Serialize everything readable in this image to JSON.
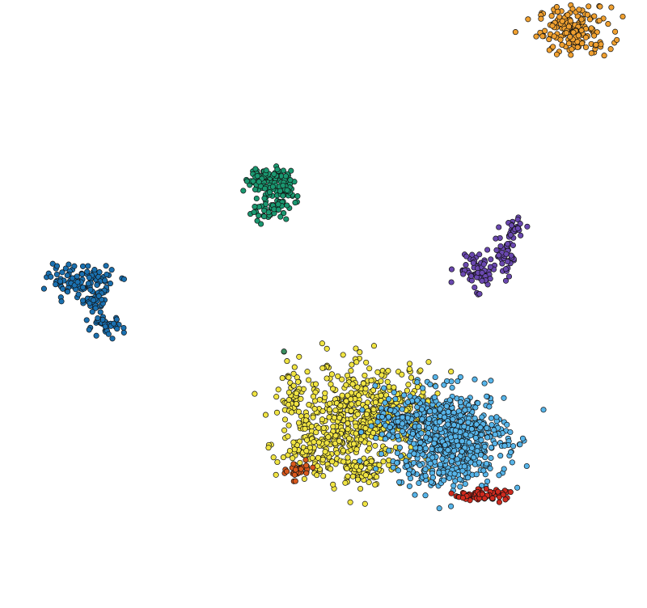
{
  "chart_data": {
    "type": "scatter",
    "title": "",
    "xlabel": "",
    "ylabel": "",
    "axes_visible": false,
    "grid": false,
    "legend": "none",
    "xlim": [
      0,
      100
    ],
    "ylim": [
      0,
      100
    ],
    "series": [
      {
        "cluster": "orange-top-right",
        "color": "#F0A030",
        "blobs": [
          {
            "cx": 88.8,
            "cy": 95.0,
            "sx": 3.3,
            "sy": 2.3,
            "n": 170
          }
        ]
      },
      {
        "cluster": "green-upper-middle",
        "color": "#1A9870",
        "blobs": [
          {
            "cx": 41.5,
            "cy": 70.6,
            "sx": 2.0,
            "sy": 1.3,
            "n": 90
          },
          {
            "cx": 42.0,
            "cy": 66.4,
            "sx": 1.9,
            "sy": 1.6,
            "n": 70
          },
          {
            "cx": 44.0,
            "cy": 68.6,
            "sx": 0.9,
            "sy": 0.9,
            "n": 20
          }
        ]
      },
      {
        "cluster": "purple-right",
        "color": "#6A48B0",
        "blobs": [
          {
            "cx": 73.8,
            "cy": 55.6,
            "sx": 1.9,
            "sy": 1.8,
            "n": 70
          },
          {
            "cx": 77.5,
            "cy": 58.6,
            "sx": 1.2,
            "sy": 1.6,
            "n": 25
          },
          {
            "cx": 79.3,
            "cy": 62.4,
            "sx": 1.0,
            "sy": 1.2,
            "n": 25
          },
          {
            "cx": 79.0,
            "cy": 57.2,
            "sx": 0.7,
            "sy": 1.4,
            "n": 15
          }
        ]
      },
      {
        "cluster": "dark-blue-left",
        "color": "#1A70B0",
        "blobs": [
          {
            "cx": 12.5,
            "cy": 54.0,
            "sx": 3.0,
            "sy": 1.4,
            "n": 90
          },
          {
            "cx": 14.5,
            "cy": 50.6,
            "sx": 1.3,
            "sy": 1.5,
            "n": 40
          },
          {
            "cx": 16.3,
            "cy": 46.3,
            "sx": 1.6,
            "sy": 1.0,
            "n": 40
          }
        ]
      },
      {
        "cluster": "yellow-lower-middle",
        "color": "#F0E442",
        "blobs": [
          {
            "cx": 56.0,
            "cy": 31.5,
            "sx": 6.5,
            "sy": 5.0,
            "n": 560
          },
          {
            "cx": 48.0,
            "cy": 25.6,
            "sx": 3.0,
            "sy": 2.2,
            "n": 90
          },
          {
            "cx": 45.3,
            "cy": 34.3,
            "sx": 0.9,
            "sy": 2.5,
            "n": 40
          },
          {
            "cx": 56.0,
            "cy": 22.5,
            "sx": 2.5,
            "sy": 1.5,
            "n": 60
          }
        ]
      },
      {
        "cluster": "light-blue-lower-right",
        "color": "#56B4E9",
        "blobs": [
          {
            "cx": 69.4,
            "cy": 27.9,
            "sx": 5.2,
            "sy": 4.6,
            "n": 700
          },
          {
            "cx": 62.0,
            "cy": 30.6,
            "sx": 2.0,
            "sy": 2.2,
            "n": 80
          }
        ]
      },
      {
        "cluster": "red-bottom-right",
        "color": "#D02A1E",
        "blobs": [
          {
            "cx": 74.3,
            "cy": 18.6,
            "sx": 2.3,
            "sy": 0.5,
            "n": 70
          }
        ]
      },
      {
        "cluster": "orange-red-small",
        "color": "#D9581C",
        "blobs": [
          {
            "cx": 46.0,
            "cy": 22.5,
            "sx": 1.0,
            "sy": 0.8,
            "n": 35
          }
        ]
      },
      {
        "cluster": "tiny-outlier",
        "color": "#3A8F60",
        "blobs": [
          {
            "cx": 43.9,
            "cy": 42.2,
            "sx": 0.1,
            "sy": 0.1,
            "n": 2
          }
        ]
      }
    ]
  }
}
